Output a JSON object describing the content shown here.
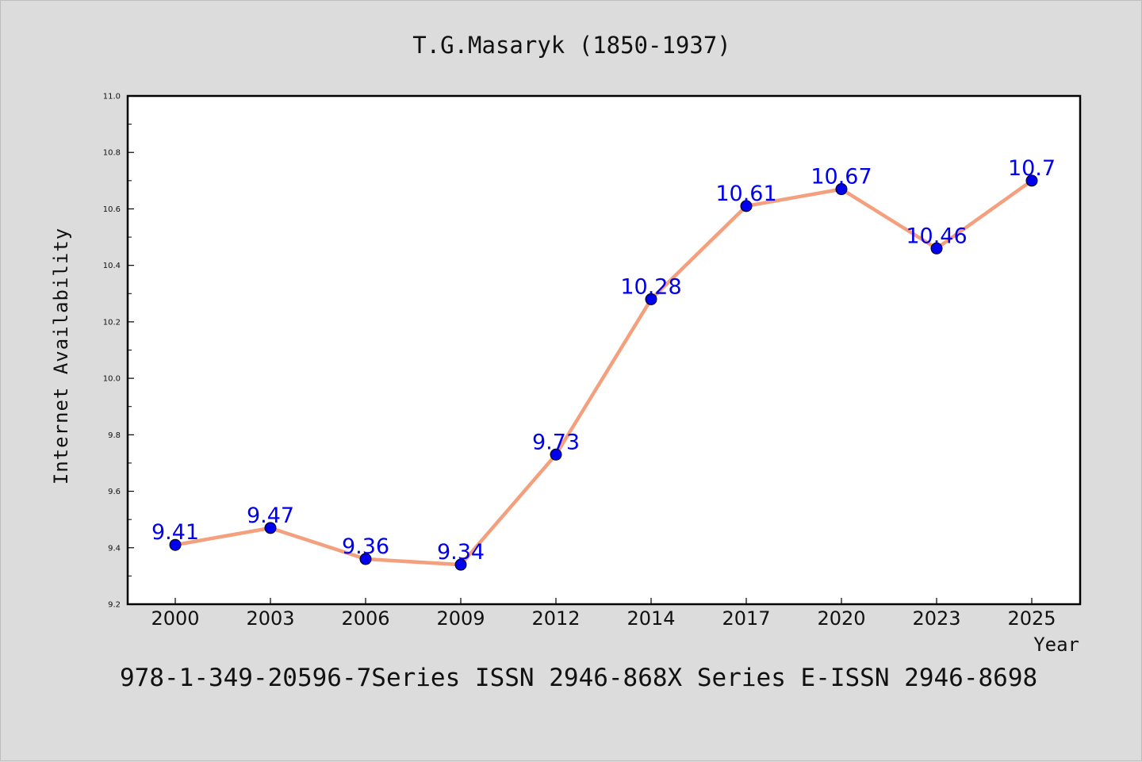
{
  "chart_data": {
    "type": "line",
    "title": "T.G.Masaryk (1850-1937)",
    "xlabel": "Year",
    "ylabel": "Internet Availability",
    "footer": "978-1-349-20596-7Series ISSN 2946-868X Series E-ISSN 2946-8698",
    "categories": [
      "2000",
      "2003",
      "2006",
      "2009",
      "2012",
      "2014",
      "2017",
      "2020",
      "2023",
      "2025"
    ],
    "values": [
      9.41,
      9.47,
      9.36,
      9.34,
      9.73,
      10.28,
      10.61,
      10.67,
      10.46,
      10.7
    ],
    "data_labels": [
      "9.41",
      "9.47",
      "9.36",
      "9.34",
      "9.73",
      "10.28",
      "10.61",
      "10.67",
      "10.46",
      "10.7"
    ],
    "ylim": [
      9.2,
      11.0
    ],
    "yticks": [
      9.2,
      9.4,
      9.6,
      9.8,
      10.0,
      10.2,
      10.4,
      10.6,
      10.8,
      11.0
    ],
    "ytick_labels": [
      "9.2",
      "9.4",
      "9.6",
      "9.8",
      "10.0",
      "10.2",
      "10.4",
      "10.6",
      "10.8",
      "11.0"
    ],
    "grid": false,
    "legend": "none",
    "colors": {
      "line": "#f4a07e",
      "marker": "#0000ee",
      "data_label": "#0000ee",
      "background": "#dcdcdc",
      "plot_background": "#ffffff"
    }
  }
}
